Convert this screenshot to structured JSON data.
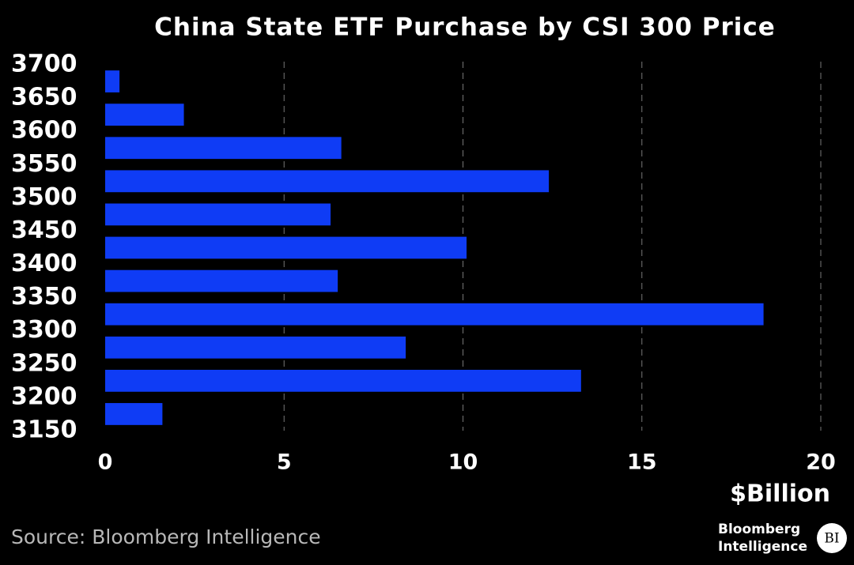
{
  "chart_data": {
    "type": "histogram",
    "orientation": "horizontal",
    "title": "China State ETF Purchase by CSI 300 Price",
    "bins": [
      3150,
      3200,
      3250,
      3300,
      3350,
      3400,
      3450,
      3500,
      3550,
      3600,
      3650,
      3700
    ],
    "values": [
      1.6,
      13.3,
      8.4,
      18.4,
      6.5,
      10.1,
      6.3,
      12.4,
      6.6,
      2.2,
      0.4
    ],
    "color": "#0f3cf5",
    "xlim": [
      0,
      20
    ],
    "xticks": [
      0,
      5,
      10,
      15,
      20
    ],
    "ylim": [
      3150,
      3700
    ],
    "x_label": "$Billion",
    "grid": true,
    "source": "Source: Bloomberg Intelligence"
  },
  "logo": {
    "line1": "Bloomberg",
    "line2": "Intelligence",
    "badge": "BI"
  }
}
